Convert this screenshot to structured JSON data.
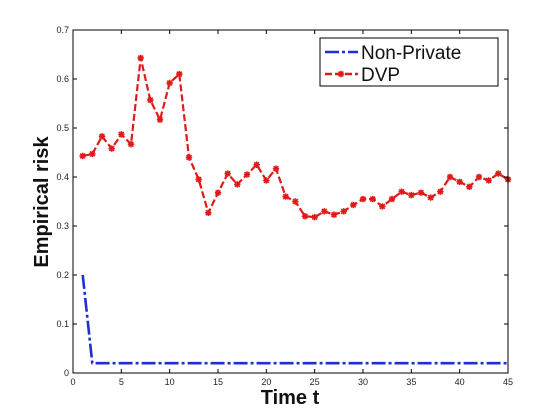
{
  "chart_data": {
    "type": "line",
    "xlabel": "Time t",
    "ylabel": "Empirical risk",
    "xlim": [
      0,
      45
    ],
    "ylim": [
      0,
      0.7
    ],
    "xticks": [
      0,
      5,
      10,
      15,
      20,
      25,
      30,
      35,
      40,
      45
    ],
    "yticks": [
      0,
      0.1,
      0.2,
      0.3,
      0.4,
      0.5,
      0.6,
      0.7
    ],
    "grid": false,
    "legend_position": "top-right",
    "series": [
      {
        "name": "Non-Private",
        "color": "#1f2fd0",
        "style": "dash-dot",
        "marker": "none",
        "x": [
          1,
          2,
          3,
          4,
          5,
          6,
          7,
          8,
          9,
          10,
          11,
          12,
          13,
          14,
          15,
          16,
          17,
          18,
          19,
          20,
          21,
          22,
          23,
          24,
          25,
          26,
          27,
          28,
          29,
          30,
          31,
          32,
          33,
          34,
          35,
          36,
          37,
          38,
          39,
          40,
          41,
          42,
          43,
          44,
          45
        ],
        "y": [
          0.2,
          0.02,
          0.02,
          0.02,
          0.02,
          0.02,
          0.02,
          0.02,
          0.02,
          0.02,
          0.02,
          0.02,
          0.02,
          0.02,
          0.02,
          0.02,
          0.02,
          0.02,
          0.02,
          0.02,
          0.02,
          0.02,
          0.02,
          0.02,
          0.02,
          0.02,
          0.02,
          0.02,
          0.02,
          0.02,
          0.02,
          0.02,
          0.02,
          0.02,
          0.02,
          0.02,
          0.02,
          0.02,
          0.02,
          0.02,
          0.02,
          0.02,
          0.02,
          0.02,
          0.02
        ]
      },
      {
        "name": "DVP",
        "color": "#e01a1a",
        "style": "dashed",
        "marker": "star",
        "x": [
          1,
          2,
          3,
          4,
          5,
          6,
          7,
          8,
          9,
          10,
          11,
          12,
          13,
          14,
          15,
          16,
          17,
          18,
          19,
          20,
          21,
          22,
          23,
          24,
          25,
          26,
          27,
          28,
          29,
          30,
          31,
          32,
          33,
          34,
          35,
          36,
          37,
          38,
          39,
          40,
          41,
          42,
          43,
          44,
          45
        ],
        "y": [
          0.443,
          0.447,
          0.483,
          0.458,
          0.487,
          0.467,
          0.643,
          0.557,
          0.517,
          0.592,
          0.61,
          0.44,
          0.395,
          0.327,
          0.368,
          0.407,
          0.385,
          0.405,
          0.425,
          0.393,
          0.417,
          0.36,
          0.35,
          0.32,
          0.318,
          0.33,
          0.323,
          0.33,
          0.343,
          0.355,
          0.355,
          0.34,
          0.355,
          0.37,
          0.363,
          0.368,
          0.358,
          0.37,
          0.4,
          0.39,
          0.38,
          0.4,
          0.393,
          0.407,
          0.395
        ]
      }
    ]
  }
}
